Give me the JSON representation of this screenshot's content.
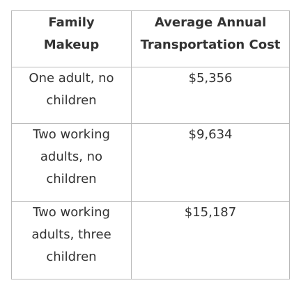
{
  "table": {
    "headers": [
      "Family Makeup",
      "Average Annual Transportation Cost"
    ],
    "rows": [
      {
        "family": "One adult, no children",
        "cost": "$5,356"
      },
      {
        "family": "Two working adults, no children",
        "cost": "$9,634"
      },
      {
        "family": "Two working adults, three children",
        "cost": "$15,187"
      }
    ]
  }
}
